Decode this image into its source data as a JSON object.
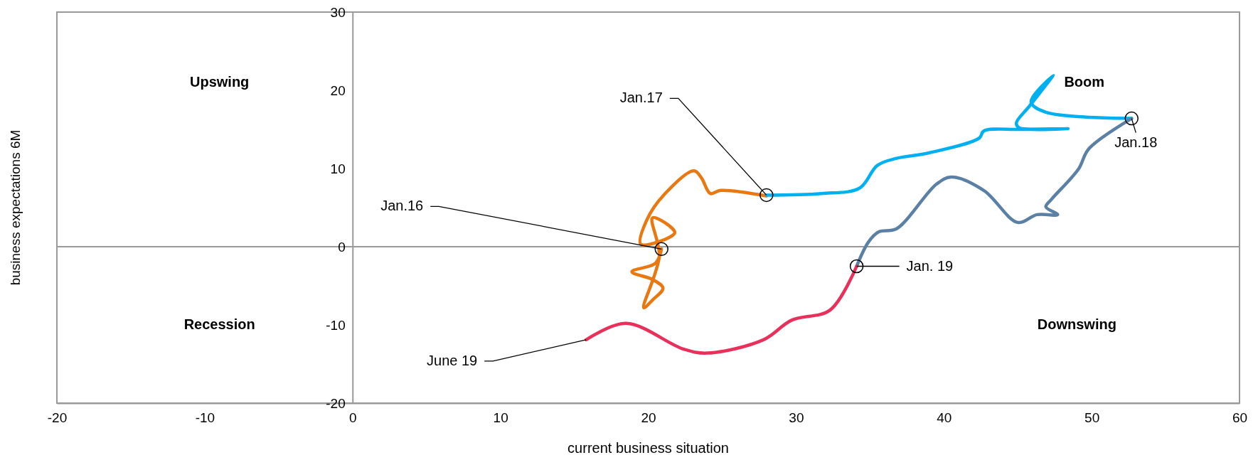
{
  "chart_data": {
    "type": "line",
    "xlabel": "current business situation",
    "ylabel": "business expectations 6M",
    "xlim": [
      -20,
      60
    ],
    "xticks": [
      -20,
      -10,
      0,
      10,
      20,
      30,
      40,
      50,
      60
    ],
    "ylim": [
      -20,
      30
    ],
    "yticks": [
      -20,
      -10,
      0,
      10,
      20,
      30
    ],
    "grid": false,
    "ref_lines": [
      {
        "axis": "y",
        "value": 0,
        "color": "#999999"
      }
    ],
    "series": [
      {
        "color": "#e8780f",
        "x": [
          20.9,
          20.5,
          18.9,
          20.3,
          21.0,
          20.3,
          19.7,
          20.75,
          20.3,
          21.8,
          19.5,
          19.9,
          21.1,
          23.1,
          23.6,
          24.2,
          24.9,
          28.0
        ],
        "values": [
          -0.3,
          -2.1,
          -3.2,
          -4.2,
          -5.3,
          -6.8,
          -7.8,
          -1.2,
          3.7,
          1.8,
          0.3,
          3.4,
          6.7,
          9.7,
          8.8,
          6.8,
          7.2,
          6.5
        ]
      },
      {
        "color": "#00b0f0",
        "x": [
          28.0,
          31.7,
          34.3,
          35.5,
          36.8,
          39.0,
          42.4,
          42.7,
          45.2,
          48.4,
          45.1,
          44.9,
          45.8,
          47.4,
          45.9,
          46.9,
          52.7
        ],
        "values": [
          6.6,
          6.8,
          7.5,
          10.4,
          11.3,
          12.0,
          13.9,
          14.8,
          15.0,
          15.1,
          15.2,
          15.8,
          18.0,
          21.9,
          18.5,
          17.2,
          16.4
        ]
      },
      {
        "color": "#5b80a5",
        "x": [
          52.7,
          49.8,
          49.1,
          47.3,
          46.9,
          47.7,
          46.3,
          45.0,
          42.7,
          40.5,
          39.5,
          36.8,
          35.6,
          34.9,
          34.1
        ],
        "values": [
          16.4,
          12.5,
          9.9,
          6.1,
          5.1,
          4.1,
          4.1,
          3.1,
          7.2,
          8.9,
          8.0,
          2.3,
          1.9,
          0.6,
          -2.5
        ]
      },
      {
        "color": "#e8305a",
        "x": [
          34.1,
          32.3,
          29.7,
          27.8,
          24.0,
          22.4,
          18.5,
          15.8
        ],
        "values": [
          -2.5,
          -8.1,
          -9.4,
          -11.9,
          -13.6,
          -13.1,
          -9.8,
          -11.9
        ]
      }
    ],
    "annotations": [
      {
        "text": "Jan.16",
        "x": 20.9,
        "y": -0.3
      },
      {
        "text": "Jan.17",
        "x": 28.0,
        "y": 6.6
      },
      {
        "text": "Jan.18",
        "x": 52.7,
        "y": 16.4
      },
      {
        "text": "Jan. 19",
        "x": 34.1,
        "y": -2.5
      },
      {
        "text": "June 19",
        "x": 15.8,
        "y": -11.9
      },
      "Upswing",
      "Boom",
      "Recession",
      "Downswing"
    ]
  }
}
